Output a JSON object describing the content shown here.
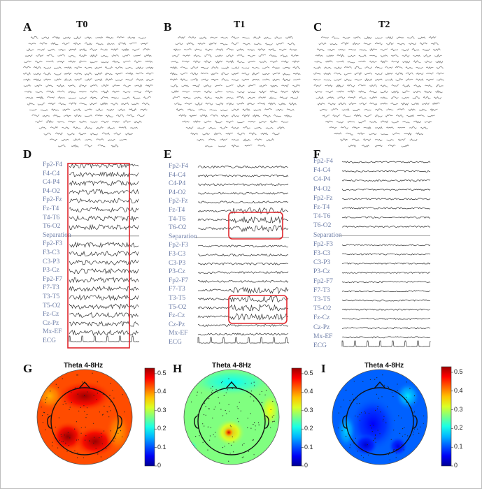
{
  "panels": {
    "A": {
      "label": "A",
      "title": "T0"
    },
    "B": {
      "label": "B",
      "title": "T1"
    },
    "C": {
      "label": "C",
      "title": "T2"
    },
    "D": {
      "label": "D"
    },
    "E": {
      "label": "E"
    },
    "F": {
      "label": "F"
    },
    "G": {
      "label": "G",
      "title": "Theta 4-8Hz"
    },
    "H": {
      "label": "H",
      "title": "Theta 4-8Hz"
    },
    "I": {
      "label": "I",
      "title": "Theta 4-8Hz"
    }
  },
  "channels": [
    "Fp2-F4",
    "F4-C4",
    "C4-P4",
    "P4-O2",
    "Fp2-Fz",
    "Fz-T4",
    "T4-T6",
    "T6-O2",
    "Separation",
    "Fp2-F3",
    "F3-C3",
    "C3-P3",
    "P3-Cz",
    "Fp2-F7",
    "F7-T3",
    "T3-T5",
    "T5-O2",
    "Fz-Cz",
    "Cz-Pz",
    "Mx-EF",
    "ECG"
  ],
  "colorbar_ticks": [
    "0.5",
    "0.4",
    "0.3",
    "0.2",
    "0.1",
    "0"
  ],
  "colors": {
    "highlight_box": "#e0262c",
    "trace": "#333333",
    "label": "#6f7fa8"
  }
}
